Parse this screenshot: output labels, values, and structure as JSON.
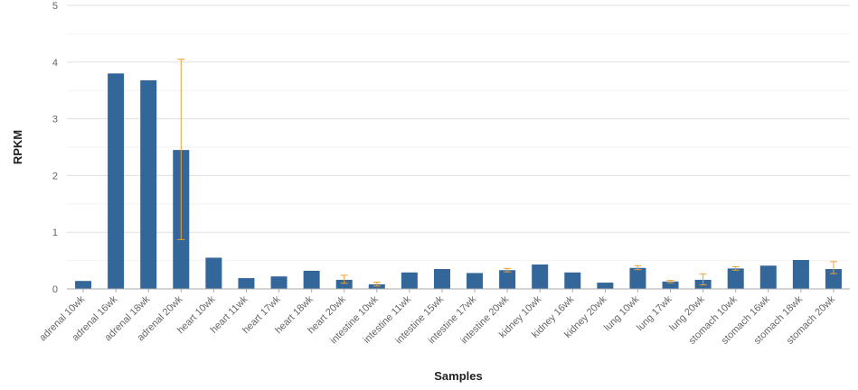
{
  "chart_data": {
    "type": "bar",
    "title": "",
    "xlabel": "Samples",
    "ylabel": "RPKM",
    "ylim": [
      0,
      5
    ],
    "yticks": [
      0,
      1,
      2,
      3,
      4,
      5
    ],
    "grid": true,
    "legend": "none",
    "bar_color": "#336699",
    "error_color": "#f0a030",
    "categories": [
      "adrenal 10wk",
      "adrenal 16wk",
      "adrenal 18wk",
      "adrenal 20wk",
      "heart 10wk",
      "heart 11wk",
      "heart 17wk",
      "heart 18wk",
      "heart 20wk",
      "intestine 10wk",
      "intestine 11wk",
      "intestine 15wk",
      "intestine 17wk",
      "intestine 20wk",
      "kidney 10wk",
      "kidney 16wk",
      "kidney 20wk",
      "lung 10wk",
      "lung 17wk",
      "lung 20wk",
      "stomach 10wk",
      "stomach 16wk",
      "stomach 18wk",
      "stomach 20wk"
    ],
    "values": [
      0.14,
      3.8,
      3.68,
      2.45,
      0.55,
      0.19,
      0.22,
      0.32,
      0.16,
      0.08,
      0.29,
      0.35,
      0.28,
      0.33,
      0.43,
      0.29,
      0.11,
      0.37,
      0.13,
      0.16,
      0.36,
      0.41,
      0.51,
      0.35
    ],
    "errors": [
      null,
      null,
      null,
      [
        0.87,
        4.05
      ],
      null,
      null,
      null,
      null,
      [
        0.1,
        0.24
      ],
      [
        0.05,
        0.12
      ],
      null,
      null,
      null,
      [
        0.3,
        0.36
      ],
      null,
      null,
      null,
      [
        0.34,
        0.41
      ],
      [
        0.11,
        0.15
      ],
      [
        0.07,
        0.26
      ],
      [
        0.33,
        0.39
      ],
      null,
      null,
      [
        0.27,
        0.48
      ]
    ]
  }
}
